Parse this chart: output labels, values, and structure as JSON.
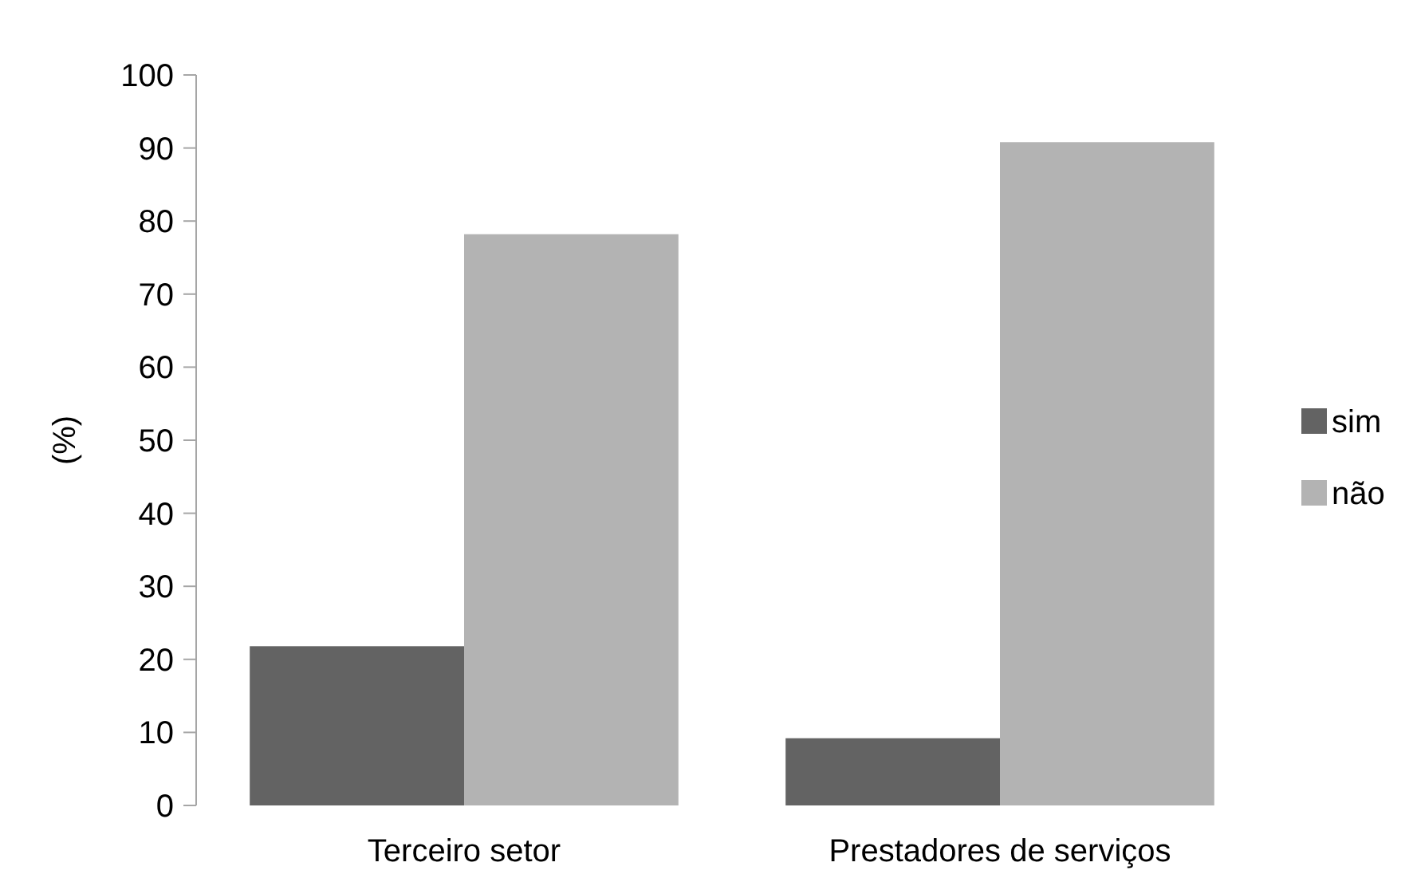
{
  "chart_data": {
    "type": "bar",
    "ylabel": "(%)",
    "categories": [
      "Terceiro setor",
      "Prestadores de serviços"
    ],
    "series": [
      {
        "name": "sim",
        "color": "#636363",
        "values": [
          21.8,
          9.2
        ]
      },
      {
        "name": "não",
        "color": "#b3b3b3",
        "values": [
          78.2,
          90.8
        ]
      }
    ],
    "ylim": [
      0,
      100
    ],
    "yticks": [
      0,
      10,
      20,
      30,
      40,
      50,
      60,
      70,
      80,
      90,
      100
    ],
    "grid": false,
    "legend": "right"
  }
}
